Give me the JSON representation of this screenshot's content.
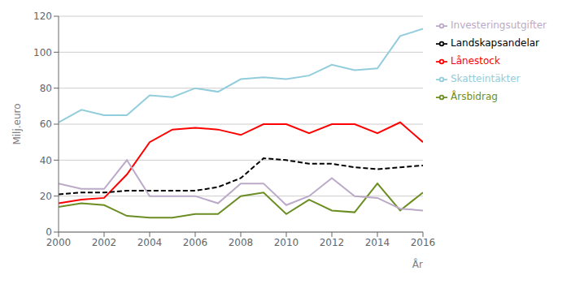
{
  "chart_data": {
    "type": "line",
    "x": [
      2000,
      2001,
      2002,
      2003,
      2004,
      2005,
      2006,
      2007,
      2008,
      2009,
      2010,
      2011,
      2012,
      2013,
      2014,
      2015,
      2016
    ],
    "series": [
      {
        "name": "Skatteintäkter",
        "color": "#92CDDC",
        "line_style": "solid",
        "values": [
          61,
          68,
          65,
          65,
          76,
          75,
          80,
          78,
          85,
          86,
          85,
          87,
          93,
          90,
          91,
          109,
          113
        ]
      },
      {
        "name": "Lånestock",
        "color": "#FF0000",
        "line_style": "solid",
        "values": [
          16,
          18,
          19,
          32,
          50,
          57,
          58,
          57,
          54,
          60,
          60,
          55,
          60,
          60,
          55,
          61,
          50
        ]
      },
      {
        "name": "Landskapsandelar",
        "color": "#000000",
        "line_style": "dashed",
        "values": [
          21,
          22,
          22,
          23,
          23,
          23,
          23,
          25,
          30,
          41,
          40,
          38,
          38,
          36,
          35,
          36,
          37
        ]
      },
      {
        "name": "Årsbidrag",
        "color": "#6B8E23",
        "line_style": "solid",
        "values": [
          14,
          16,
          15,
          9,
          8,
          8,
          10,
          10,
          20,
          22,
          10,
          18,
          12,
          11,
          27,
          12,
          22
        ]
      },
      {
        "name": "Investeringsutgifter",
        "color": "#BBA9C8",
        "line_style": "solid",
        "values": [
          27,
          24,
          24,
          40,
          20,
          20,
          20,
          16,
          27,
          27,
          15,
          20,
          30,
          20,
          19,
          13,
          12
        ]
      }
    ],
    "xlabel": "År",
    "ylabel": "Milj.euro",
    "xlim": [
      2000,
      2016
    ],
    "xticks": [
      2000,
      2002,
      2004,
      2006,
      2008,
      2010,
      2012,
      2014,
      2016
    ],
    "ylim": [
      0,
      120
    ],
    "yticks": [
      0,
      20,
      40,
      60,
      80,
      100,
      120
    ],
    "grid": "y",
    "legend": "right"
  }
}
